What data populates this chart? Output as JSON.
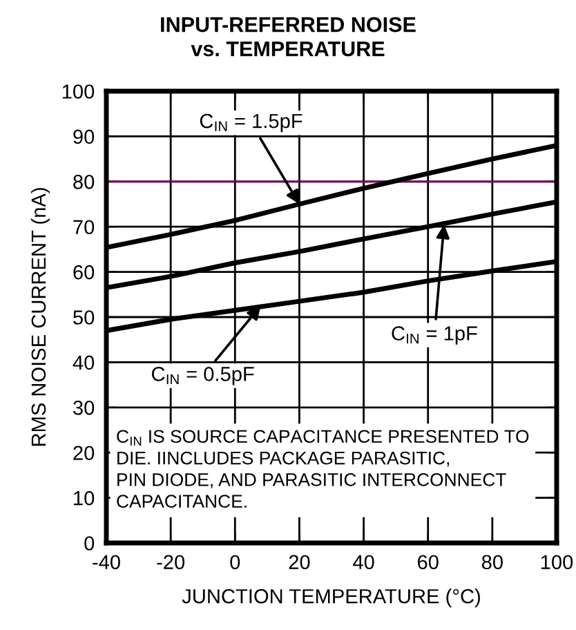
{
  "chart_data": {
    "type": "line",
    "title": "INPUT-REFERRED NOISE\nvs. TEMPERATURE",
    "xlabel": "JUNCTION TEMPERATURE (°C)",
    "ylabel": "RMS NOISE CURRENT (nA)",
    "x": [
      -40,
      -20,
      0,
      20,
      40,
      60,
      80,
      100
    ],
    "series": [
      {
        "color": "#000000",
        "values": [
          65.4,
          68.3,
          71.4,
          75,
          78.5,
          81.8,
          85,
          88
        ]
      },
      {
        "color": "#000000",
        "values": [
          56.5,
          59,
          62,
          64.5,
          67.3,
          70,
          72.8,
          75.5
        ]
      },
      {
        "color": "#000000",
        "values": [
          47,
          49.5,
          51.5,
          53.5,
          55.5,
          58,
          60.2,
          62.3
        ]
      }
    ],
    "xlim": [
      -40,
      100
    ],
    "xticks": [
      -40,
      -20,
      0,
      20,
      40,
      60,
      80,
      100
    ],
    "ylim": [
      0,
      100
    ],
    "yticks": [
      0,
      10,
      20,
      30,
      40,
      50,
      60,
      70,
      80,
      90,
      100
    ],
    "grid": true,
    "marker": "none",
    "line_style": "solid",
    "ref_lines": [
      {
        "axis": "y",
        "value": 80,
        "color": "#800060"
      }
    ],
    "annotations": [
      {
        "text": "C$_{IN}$ = 1.5pF",
        "x": 20,
        "y": 75
      },
      {
        "text": "C$_{IN}$ = 1pF",
        "x": 65,
        "y": 70.5
      },
      {
        "text": "C$_{IN}$ = 0.5pF",
        "x": 8,
        "y": 52.5
      },
      "C$_{IN}$ IS SOURCE CAPACITANCE PRESENTED TO\nDIE. IINCLUDES PACKAGE PARASITIC,\nPIN DIODE, AND PARASITIC INTERCONNECT\nCAPACITANCE."
    ]
  }
}
